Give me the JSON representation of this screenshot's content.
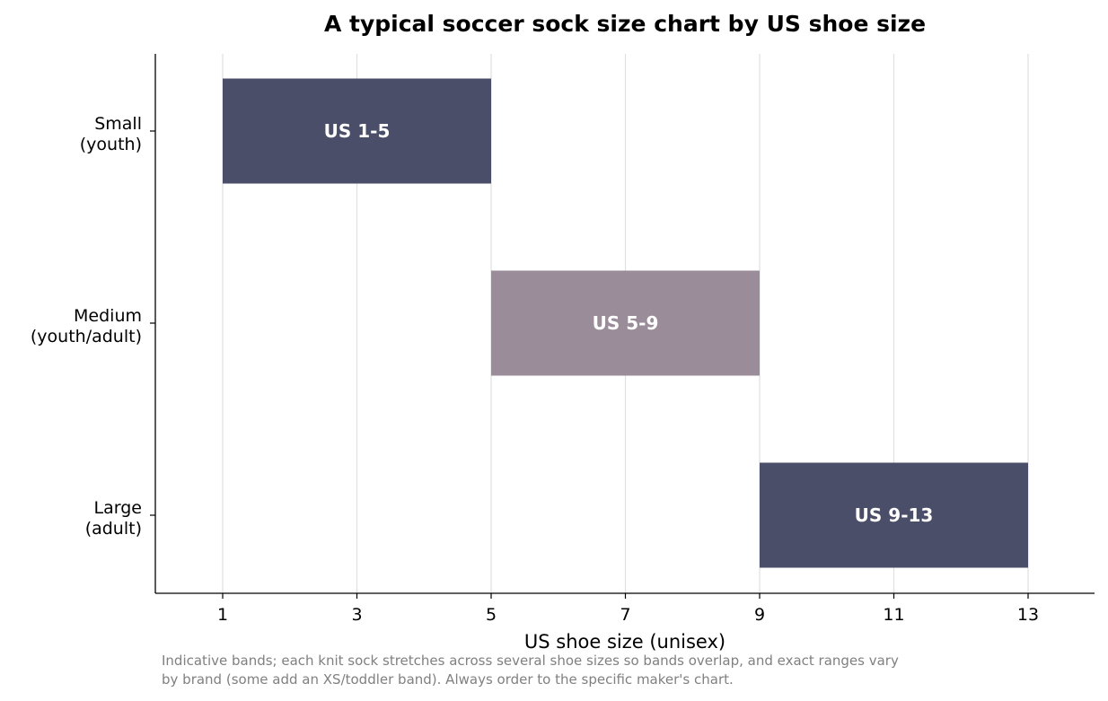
{
  "chart_data": {
    "type": "bar",
    "orientation": "horizontal-range",
    "title": "A typical soccer sock size chart by US shoe size",
    "xlabel": "US shoe size (unisex)",
    "ylabel": "",
    "xlim": [
      0,
      14
    ],
    "xticks": [
      1,
      3,
      5,
      7,
      9,
      11,
      13
    ],
    "grid": "vertical",
    "bands": [
      {
        "category": [
          "Small",
          "(youth)"
        ],
        "start": 1,
        "end": 5,
        "label": "US 1-5",
        "color": "#4a4e69"
      },
      {
        "category": [
          "Medium",
          "(youth/adult)"
        ],
        "start": 5,
        "end": 9,
        "label": "US 5-9",
        "color": "#9a8c98"
      },
      {
        "category": [
          "Large",
          "(adult)"
        ],
        "start": 9,
        "end": 13,
        "label": "US 9-13",
        "color": "#4a4e69"
      }
    ],
    "footnote": [
      "Indicative bands; each knit sock stretches across several shoe sizes so bands overlap, and exact ranges vary",
      "by brand (some add an XS/toddler band). Always order to the specific maker's chart."
    ]
  }
}
